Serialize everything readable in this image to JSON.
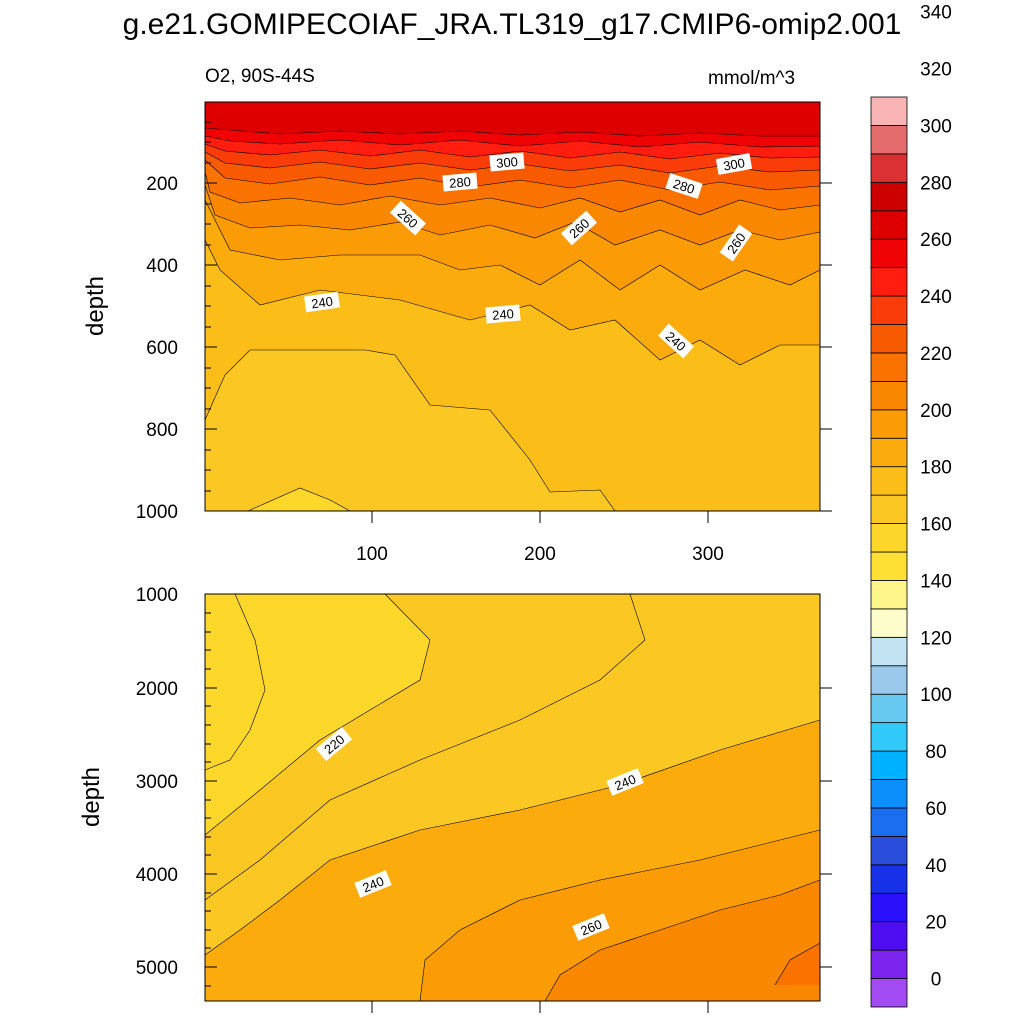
{
  "title": "g.e21.GOMIPECOIAF_JRA.TL319_g17.CMIP6-omip2.001",
  "subtitle_left": "O2, 90S-44S",
  "subtitle_right": "mmol/m^3",
  "chart_data": {
    "type": "contour",
    "variable": "O2",
    "region": "90S-44S",
    "units": "mmol/m^3",
    "x_range": [
      1,
      366
    ],
    "x_ticks": [
      "100",
      "200",
      "300"
    ],
    "colorbar": {
      "labels": [
        "0",
        "20",
        "40",
        "60",
        "80",
        "100",
        "120",
        "140",
        "160",
        "180",
        "200",
        "220",
        "240",
        "260",
        "280",
        "300",
        "320",
        "340"
      ],
      "colors": [
        "#a24bf2",
        "#7a24ee",
        "#4f0df2",
        "#2a10fb",
        "#1731e9",
        "#2a4edb",
        "#1b6ef0",
        "#0b8dfa",
        "#00b1ff",
        "#30c9fa",
        "#67c9f0",
        "#9ac8eb",
        "#c2e3f2",
        "#fdfccb",
        "#fef58a",
        "#fde033",
        "#fcd72a",
        "#fbc823",
        "#fbbd17",
        "#fbac0c",
        "#fb9b06",
        "#f98800",
        "#fa7300",
        "#f75a00",
        "#fa3c08",
        "#fe1d0f",
        "#ef0304",
        "#de0000",
        "#cc0000",
        "#dc3133",
        "#e56c6d",
        "#f8b4b5"
      ]
    },
    "panels": [
      {
        "name": "upper",
        "ylabel": "depth",
        "y_range": [
          0,
          1000
        ],
        "y_ticks": [
          "200",
          "400",
          "600",
          "800",
          "1000"
        ],
        "contour_labels": [
          "300",
          "300",
          "280",
          "280",
          "260",
          "260",
          "260",
          "240",
          "240",
          "240"
        ]
      },
      {
        "name": "lower",
        "ylabel": "depth",
        "y_range": [
          1000,
          5375
        ],
        "y_ticks": [
          "1000",
          "2000",
          "3000",
          "4000",
          "5000"
        ],
        "contour_labels": [
          "220",
          "240",
          "240",
          "260"
        ]
      }
    ]
  }
}
